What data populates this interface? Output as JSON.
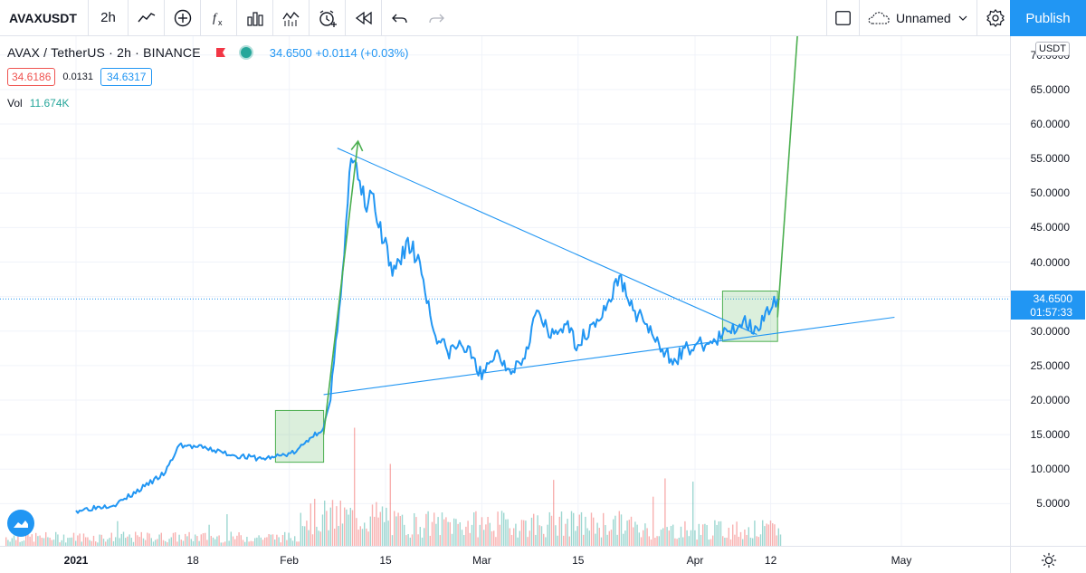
{
  "toolbar": {
    "symbol": "AVAXUSDT",
    "interval": "2h",
    "icons": [
      "chart-style-icon",
      "add-indicator-icon",
      "indicators-fx-icon",
      "bar-chart-icon",
      "templates-icon",
      "alert-clock-icon",
      "replay-icon",
      "undo-icon",
      "redo-icon"
    ],
    "layout_name": "Unnamed",
    "publish_label": "Publish"
  },
  "legend": {
    "symbol_text": "AVAX / TetherUS · 2h · BINANCE",
    "price_text": "34.6500 +0.0114 (+0.03%)",
    "bid": "34.6186",
    "spread": "0.0131",
    "ask": "34.6317",
    "vol_label": "Vol",
    "vol_value": "11.674K"
  },
  "price_axis": {
    "currency": "USDT",
    "labels": [
      "70.0000",
      "65.0000",
      "60.0000",
      "55.0000",
      "50.0000",
      "45.0000",
      "40.0000",
      "35.0000",
      "30.0000",
      "25.0000",
      "20.0000",
      "15.0000",
      "10.0000",
      "5.0000"
    ],
    "current_price": "34.6500",
    "countdown": "01:57:33"
  },
  "time_axis": {
    "labels": [
      {
        "text": "2021",
        "bold": true
      },
      {
        "text": "18",
        "bold": false
      },
      {
        "text": "Feb",
        "bold": false
      },
      {
        "text": "15",
        "bold": false
      },
      {
        "text": "Mar",
        "bold": false
      },
      {
        "text": "15",
        "bold": false
      },
      {
        "text": "Apr",
        "bold": false
      },
      {
        "text": "12",
        "bold": false
      },
      {
        "text": "May",
        "bold": false
      }
    ]
  },
  "colors": {
    "price_line": "#2196f3",
    "arrow": "#4caf50",
    "vol_up": "#26a69a",
    "vol_down": "#ef5350",
    "publish": "#2196f3"
  },
  "chart_data": {
    "type": "line",
    "title": "AVAX / TetherUS · 2h · BINANCE",
    "xlabel": "",
    "ylabel": "",
    "ylim": [
      3,
      75
    ],
    "x": [
      "2021-01-01",
      "2021-01-07",
      "2021-01-11",
      "2021-01-14",
      "2021-01-16",
      "2021-01-20",
      "2021-01-24",
      "2021-01-28",
      "2021-01-30",
      "2021-02-02",
      "2021-02-04",
      "2021-02-06",
      "2021-02-07",
      "2021-02-08",
      "2021-02-10",
      "2021-02-11",
      "2021-02-12",
      "2021-02-13",
      "2021-02-14",
      "2021-02-16",
      "2021-02-18",
      "2021-02-20",
      "2021-02-22",
      "2021-02-24",
      "2021-02-26",
      "2021-02-28",
      "2021-03-01",
      "2021-03-03",
      "2021-03-05",
      "2021-03-07",
      "2021-03-09",
      "2021-03-11",
      "2021-03-13",
      "2021-03-15",
      "2021-03-17",
      "2021-03-19",
      "2021-03-21",
      "2021-03-23",
      "2021-03-25",
      "2021-03-27",
      "2021-03-29",
      "2021-03-31",
      "2021-04-02",
      "2021-04-04",
      "2021-04-06",
      "2021-04-08",
      "2021-04-10",
      "2021-04-12",
      "2021-04-13"
    ],
    "series": [
      {
        "values": [
          4.0,
          5.0,
          7.5,
          9.5,
          13.5,
          13.0,
          12.0,
          11.5,
          11.8,
          12.5,
          14.5,
          16.0,
          20.0,
          30.0,
          55.0,
          52.0,
          48.0,
          50.0,
          45.0,
          38.0,
          43.0,
          40.0,
          30.0,
          27.0,
          28.0,
          26.0,
          23.0,
          27.0,
          24.5,
          26.0,
          33.0,
          29.0,
          31.0,
          28.0,
          31.0,
          33.0,
          38.0,
          33.0,
          31.0,
          27.0,
          26.0,
          27.5,
          28.0,
          28.5,
          30.0,
          31.5,
          30.5,
          33.0,
          34.65
        ]
      }
    ],
    "annotations": {
      "trendlines": [
        {
          "from": [
            "2021-02-08",
            56.5
          ],
          "to": [
            "2021-04-10",
            29.5
          ]
        },
        {
          "from": [
            "2021-02-06",
            20.8
          ],
          "to": [
            "2021-04-30",
            32.0
          ]
        }
      ],
      "rectangles": [
        {
          "from": [
            "2021-01-30",
            18.5
          ],
          "to": [
            "2021-02-06",
            11.0
          ]
        },
        {
          "from": [
            "2021-04-05",
            35.8
          ],
          "to": [
            "2021-04-13",
            28.5
          ]
        }
      ],
      "arrows": [
        {
          "from": [
            "2021-02-06",
            15.0
          ],
          "to": [
            "2021-02-11",
            57.5
          ]
        },
        {
          "from": [
            "2021-04-13",
            32.0
          ],
          "to": [
            "2021-04-16",
            74.5
          ]
        }
      ]
    }
  }
}
